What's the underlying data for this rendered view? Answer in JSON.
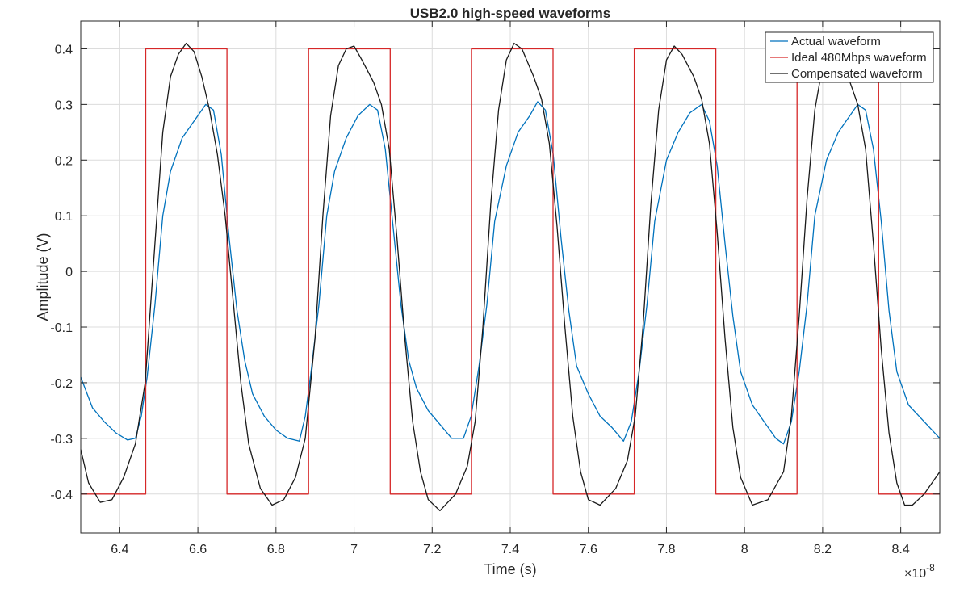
{
  "chart_data": {
    "type": "line",
    "title": "USB2.0 high-speed waveforms",
    "xlabel": "Time (s)",
    "ylabel": "Amplitude (V)",
    "x_exponent_label": "×10",
    "x_exponent_power": "-8",
    "xlim": [
      6.3,
      8.5
    ],
    "ylim": [
      -0.47,
      0.45
    ],
    "x_ticks": [
      6.4,
      6.6,
      6.8,
      7.0,
      7.2,
      7.4,
      7.6,
      7.8,
      8.0,
      8.2,
      8.4
    ],
    "x_tick_labels": [
      "6.4",
      "6.6",
      "6.8",
      "7",
      "7.2",
      "7.4",
      "7.6",
      "7.8",
      "8",
      "8.2",
      "8.4"
    ],
    "y_ticks": [
      0.4,
      0.3,
      0.2,
      0.1,
      0,
      -0.1,
      -0.2,
      -0.3,
      -0.4
    ],
    "y_tick_labels": [
      "0.4",
      "0.3",
      "0.2",
      "0.1",
      "0",
      "-0.1",
      "-0.2",
      "-0.3",
      "-0.4"
    ],
    "grid": true,
    "legend_position": "top-right",
    "series": [
      {
        "name": "Actual waveform",
        "color": "#0072BD",
        "x": [
          6.3,
          6.33,
          6.36,
          6.39,
          6.42,
          6.44,
          6.455,
          6.47,
          6.49,
          6.51,
          6.53,
          6.56,
          6.59,
          6.62,
          6.64,
          6.66,
          6.68,
          6.7,
          6.72,
          6.74,
          6.77,
          6.8,
          6.83,
          6.86,
          6.875,
          6.89,
          6.91,
          6.93,
          6.95,
          6.98,
          7.01,
          7.04,
          7.06,
          7.08,
          7.1,
          7.12,
          7.14,
          7.16,
          7.19,
          7.22,
          7.25,
          7.28,
          7.3,
          7.32,
          7.34,
          7.36,
          7.39,
          7.42,
          7.45,
          7.47,
          7.49,
          7.51,
          7.53,
          7.55,
          7.57,
          7.6,
          7.63,
          7.66,
          7.69,
          7.71,
          7.73,
          7.75,
          7.77,
          7.8,
          7.83,
          7.86,
          7.89,
          7.91,
          7.93,
          7.95,
          7.97,
          7.99,
          8.02,
          8.05,
          8.08,
          8.1,
          8.12,
          8.14,
          8.16,
          8.18,
          8.21,
          8.24,
          8.26,
          8.29,
          8.31,
          8.33,
          8.35,
          8.37,
          8.39,
          8.42,
          8.46,
          8.5
        ],
        "y": [
          -0.19,
          -0.245,
          -0.27,
          -0.29,
          -0.303,
          -0.3,
          -0.26,
          -0.19,
          -0.06,
          0.1,
          0.18,
          0.24,
          0.27,
          0.3,
          0.29,
          0.21,
          0.06,
          -0.07,
          -0.16,
          -0.22,
          -0.26,
          -0.285,
          -0.3,
          -0.305,
          -0.26,
          -0.18,
          -0.06,
          0.1,
          0.18,
          0.24,
          0.28,
          0.3,
          0.29,
          0.22,
          0.08,
          -0.06,
          -0.16,
          -0.21,
          -0.25,
          -0.275,
          -0.3,
          -0.3,
          -0.26,
          -0.17,
          -0.06,
          0.09,
          0.19,
          0.25,
          0.28,
          0.305,
          0.29,
          0.21,
          0.06,
          -0.07,
          -0.17,
          -0.22,
          -0.26,
          -0.28,
          -0.305,
          -0.27,
          -0.18,
          -0.06,
          0.09,
          0.2,
          0.25,
          0.285,
          0.3,
          0.27,
          0.19,
          0.05,
          -0.08,
          -0.18,
          -0.24,
          -0.27,
          -0.3,
          -0.31,
          -0.27,
          -0.18,
          -0.06,
          0.1,
          0.2,
          0.25,
          0.27,
          0.3,
          0.29,
          0.22,
          0.09,
          -0.07,
          -0.18,
          -0.24,
          -0.27,
          -0.3
        ]
      },
      {
        "name": "Ideal 480Mbps waveform",
        "color": "#D62728",
        "x": [
          6.3,
          6.4665,
          6.4665,
          6.6745,
          6.6745,
          6.8835,
          6.8835,
          7.0925,
          7.0925,
          7.3005,
          7.3005,
          7.5095,
          7.5095,
          7.7175,
          7.7175,
          7.9265,
          7.9265,
          8.1345,
          8.1345,
          8.3435,
          8.3435,
          8.5
        ],
        "y": [
          -0.4,
          -0.4,
          0.4,
          0.4,
          -0.4,
          -0.4,
          0.4,
          0.4,
          -0.4,
          -0.4,
          0.4,
          0.4,
          -0.4,
          -0.4,
          0.4,
          0.4,
          -0.4,
          -0.4,
          0.4,
          0.4,
          -0.4,
          -0.4
        ]
      },
      {
        "name": "Compensated waveform",
        "color": "#1a1a1a",
        "x": [
          6.3,
          6.32,
          6.35,
          6.38,
          6.41,
          6.44,
          6.465,
          6.49,
          6.51,
          6.53,
          6.55,
          6.57,
          6.59,
          6.61,
          6.63,
          6.65,
          6.67,
          6.69,
          6.71,
          6.73,
          6.76,
          6.79,
          6.82,
          6.85,
          6.875,
          6.9,
          6.92,
          6.94,
          6.96,
          6.98,
          7.0,
          7.02,
          7.05,
          7.07,
          7.09,
          7.11,
          7.13,
          7.15,
          7.17,
          7.19,
          7.22,
          7.26,
          7.29,
          7.31,
          7.33,
          7.35,
          7.37,
          7.39,
          7.41,
          7.43,
          7.46,
          7.48,
          7.5,
          7.52,
          7.54,
          7.56,
          7.58,
          7.6,
          7.63,
          7.67,
          7.7,
          7.72,
          7.74,
          7.76,
          7.78,
          7.8,
          7.82,
          7.84,
          7.87,
          7.89,
          7.91,
          7.93,
          7.95,
          7.97,
          7.99,
          8.02,
          8.06,
          8.1,
          8.12,
          8.14,
          8.16,
          8.18,
          8.2,
          8.22,
          8.24,
          8.27,
          8.29,
          8.31,
          8.33,
          8.35,
          8.37,
          8.39,
          8.41,
          8.43,
          8.46,
          8.5
        ],
        "y": [
          -0.32,
          -0.38,
          -0.415,
          -0.41,
          -0.37,
          -0.31,
          -0.2,
          0.05,
          0.25,
          0.35,
          0.39,
          0.41,
          0.395,
          0.35,
          0.29,
          0.21,
          0.1,
          -0.05,
          -0.2,
          -0.31,
          -0.39,
          -0.42,
          -0.41,
          -0.37,
          -0.3,
          -0.12,
          0.1,
          0.28,
          0.37,
          0.4,
          0.405,
          0.38,
          0.34,
          0.3,
          0.22,
          0.06,
          -0.12,
          -0.27,
          -0.36,
          -0.41,
          -0.43,
          -0.4,
          -0.35,
          -0.27,
          -0.1,
          0.12,
          0.29,
          0.38,
          0.41,
          0.4,
          0.35,
          0.31,
          0.23,
          0.08,
          -0.1,
          -0.26,
          -0.36,
          -0.41,
          -0.42,
          -0.39,
          -0.34,
          -0.26,
          -0.1,
          0.12,
          0.29,
          0.38,
          0.405,
          0.39,
          0.35,
          0.31,
          0.23,
          0.07,
          -0.12,
          -0.28,
          -0.37,
          -0.42,
          -0.41,
          -0.36,
          -0.26,
          -0.08,
          0.13,
          0.29,
          0.37,
          0.405,
          0.4,
          0.34,
          0.3,
          0.22,
          0.05,
          -0.14,
          -0.29,
          -0.38,
          -0.42,
          -0.42,
          -0.4,
          -0.36
        ]
      }
    ]
  }
}
